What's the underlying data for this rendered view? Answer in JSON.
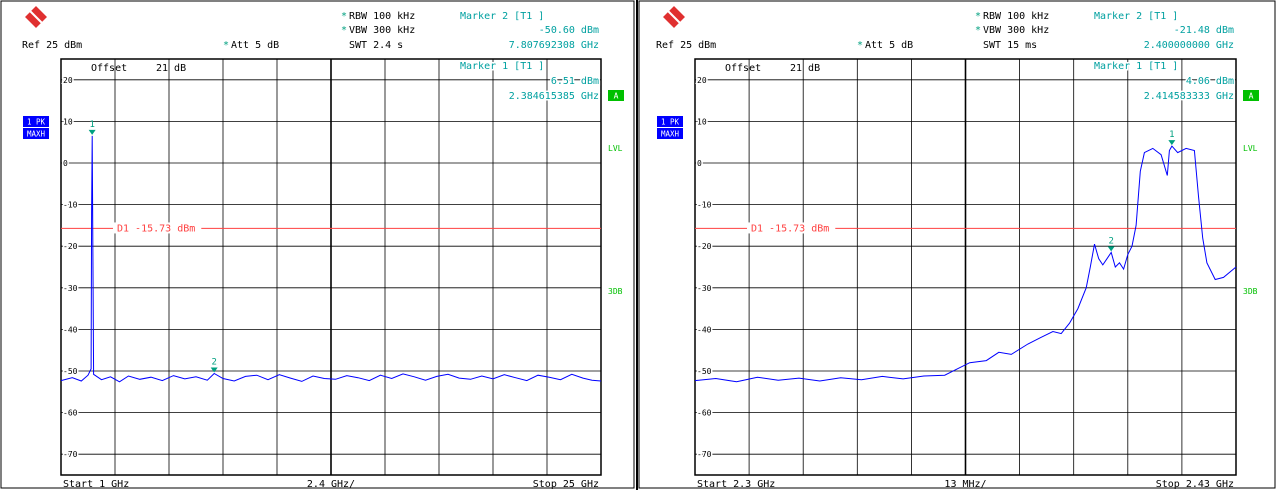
{
  "panels": [
    {
      "id": "left",
      "header": {
        "rbw": "RBW 100 kHz",
        "vbw": "VBW 300 kHz",
        "swt": "SWT 2.4 s",
        "ref": "Ref  25 dBm",
        "att": "Att  5 dB",
        "rbw_star": "*",
        "vbw_star": "*",
        "att_star": "*",
        "marker2_title": "Marker 2 [T1 ]",
        "marker2_level": "-50.60 dBm",
        "marker2_freq": "7.807692308 GHz",
        "marker1_title": "Marker 1 [T1 ]",
        "marker1_level": "6.51 dBm",
        "marker1_freq": "2.384615385 GHz"
      },
      "offset_label": "Offset",
      "offset_value": "21 dB",
      "side_labels": {
        "trace_box_top": "1 PK",
        "trace_box_bottom": "MAXH",
        "a_box": "A",
        "lvl": "LVL",
        "db3": "3DB"
      },
      "display_line_label": "D1 -15.73 dBm",
      "footer": {
        "start": "Start  1 GHz",
        "center": "2.4 GHz/",
        "stop": "Stop  25 GHz"
      },
      "chart_data": {
        "type": "line",
        "x_unit": "GHz",
        "xlim": [
          1,
          25
        ],
        "ylim": [
          -75,
          25
        ],
        "yticks": [
          20,
          10,
          0,
          -10,
          -20,
          -30,
          -40,
          -50,
          -60,
          -70
        ],
        "ytick_labels": [
          "20",
          "10",
          "0",
          "-10",
          "-20",
          "-30",
          "-40",
          "-50",
          "-60",
          "-70"
        ],
        "display_line": -15.73,
        "markers": [
          {
            "label": "1",
            "x": 2.384615385,
            "y": 6.51
          },
          {
            "label": "2",
            "x": 7.807692308,
            "y": -50.6
          }
        ],
        "series": [
          {
            "points": [
              [
                1.0,
                -52.3
              ],
              [
                1.5,
                -51.6
              ],
              [
                1.9,
                -52.4
              ],
              [
                2.2,
                -51.0
              ],
              [
                2.34,
                -49.5
              ],
              [
                2.36,
                -12.0
              ],
              [
                2.3846,
                6.51
              ],
              [
                2.41,
                -14.0
              ],
              [
                2.45,
                -50.8
              ],
              [
                2.8,
                -52.1
              ],
              [
                3.2,
                -51.4
              ],
              [
                3.6,
                -52.6
              ],
              [
                4.0,
                -51.2
              ],
              [
                4.5,
                -52.0
              ],
              [
                5.0,
                -51.5
              ],
              [
                5.5,
                -52.3
              ],
              [
                6.0,
                -51.1
              ],
              [
                6.5,
                -51.9
              ],
              [
                7.0,
                -51.4
              ],
              [
                7.5,
                -52.2
              ],
              [
                7.8077,
                -50.6
              ],
              [
                8.2,
                -51.8
              ],
              [
                8.7,
                -52.4
              ],
              [
                9.2,
                -51.3
              ],
              [
                9.7,
                -51.0
              ],
              [
                10.2,
                -52.1
              ],
              [
                10.7,
                -50.9
              ],
              [
                11.2,
                -51.7
              ],
              [
                11.7,
                -52.5
              ],
              [
                12.2,
                -51.2
              ],
              [
                12.7,
                -51.8
              ],
              [
                13.2,
                -52.0
              ],
              [
                13.7,
                -51.1
              ],
              [
                14.2,
                -51.6
              ],
              [
                14.7,
                -52.3
              ],
              [
                15.2,
                -51.0
              ],
              [
                15.7,
                -51.8
              ],
              [
                16.2,
                -50.7
              ],
              [
                16.7,
                -51.4
              ],
              [
                17.2,
                -52.2
              ],
              [
                17.7,
                -51.3
              ],
              [
                18.2,
                -50.8
              ],
              [
                18.7,
                -51.7
              ],
              [
                19.2,
                -52.0
              ],
              [
                19.7,
                -51.2
              ],
              [
                20.2,
                -51.9
              ],
              [
                20.7,
                -50.9
              ],
              [
                21.2,
                -51.6
              ],
              [
                21.7,
                -52.3
              ],
              [
                22.2,
                -51.0
              ],
              [
                22.7,
                -51.5
              ],
              [
                23.2,
                -52.1
              ],
              [
                23.7,
                -50.8
              ],
              [
                24.2,
                -51.7
              ],
              [
                24.6,
                -52.2
              ],
              [
                25.0,
                -52.4
              ]
            ]
          }
        ]
      }
    },
    {
      "id": "right",
      "header": {
        "rbw": "RBW 100 kHz",
        "vbw": "VBW 300 kHz",
        "swt": "SWT 15 ms",
        "ref": "Ref  25 dBm",
        "att": "Att  5 dB",
        "rbw_star": "*",
        "vbw_star": "*",
        "att_star": "*",
        "marker2_title": "Marker 2 [T1 ]",
        "marker2_level": "-21.48 dBm",
        "marker2_freq": "2.400000000 GHz",
        "marker1_title": "Marker 1 [T1 ]",
        "marker1_level": "4.06 dBm",
        "marker1_freq": "2.414583333 GHz"
      },
      "offset_label": "Offset",
      "offset_value": "21 dB",
      "side_labels": {
        "trace_box_top": "1 PK",
        "trace_box_bottom": "MAXH",
        "a_box": "A",
        "lvl": "LVL",
        "db3": "3DB"
      },
      "display_line_label": "D1 -15.73 dBm",
      "footer": {
        "start": "Start  2.3 GHz",
        "center": "13 MHz/",
        "stop": "Stop  2.43 GHz"
      },
      "chart_data": {
        "type": "line",
        "x_unit": "GHz",
        "xlim": [
          2.3,
          2.43
        ],
        "ylim": [
          -75,
          25
        ],
        "yticks": [
          20,
          10,
          0,
          -10,
          -20,
          -30,
          -40,
          -50,
          -60,
          -70
        ],
        "ytick_labels": [
          "20",
          "10",
          "0",
          "-10",
          "-20",
          "-30",
          "-40",
          "-50",
          "-60",
          "-70"
        ],
        "display_line": -15.73,
        "markers": [
          {
            "label": "1",
            "x": 2.414583333,
            "y": 4.06
          },
          {
            "label": "2",
            "x": 2.4,
            "y": -21.48
          }
        ],
        "series": [
          {
            "points": [
              [
                2.3,
                -52.3
              ],
              [
                2.305,
                -51.8
              ],
              [
                2.31,
                -52.6
              ],
              [
                2.315,
                -51.5
              ],
              [
                2.32,
                -52.2
              ],
              [
                2.325,
                -51.7
              ],
              [
                2.33,
                -52.4
              ],
              [
                2.335,
                -51.6
              ],
              [
                2.34,
                -52.1
              ],
              [
                2.345,
                -51.3
              ],
              [
                2.35,
                -51.9
              ],
              [
                2.355,
                -51.2
              ],
              [
                2.36,
                -51.0
              ],
              [
                2.363,
                -49.5
              ],
              [
                2.366,
                -48.0
              ],
              [
                2.37,
                -47.5
              ],
              [
                2.373,
                -45.5
              ],
              [
                2.376,
                -46.0
              ],
              [
                2.38,
                -43.5
              ],
              [
                2.383,
                -42.0
              ],
              [
                2.386,
                -40.5
              ],
              [
                2.388,
                -41.0
              ],
              [
                2.39,
                -38.5
              ],
              [
                2.392,
                -35.0
              ],
              [
                2.394,
                -30.0
              ],
              [
                2.395,
                -25.0
              ],
              [
                2.396,
                -19.5
              ],
              [
                2.397,
                -23.0
              ],
              [
                2.398,
                -24.5
              ],
              [
                2.399,
                -23.0
              ],
              [
                2.4,
                -21.48
              ],
              [
                2.401,
                -25.0
              ],
              [
                2.402,
                -24.0
              ],
              [
                2.403,
                -25.5
              ],
              [
                2.404,
                -22.0
              ],
              [
                2.405,
                -20.0
              ],
              [
                2.406,
                -15.0
              ],
              [
                2.407,
                -2.0
              ],
              [
                2.408,
                2.5
              ],
              [
                2.41,
                3.5
              ],
              [
                2.412,
                2.0
              ],
              [
                2.4135,
                -3.0
              ],
              [
                2.414,
                3.0
              ],
              [
                2.4146,
                4.06
              ],
              [
                2.416,
                2.5
              ],
              [
                2.418,
                3.5
              ],
              [
                2.42,
                3.0
              ],
              [
                2.421,
                -8.0
              ],
              [
                2.422,
                -18.0
              ],
              [
                2.423,
                -24.0
              ],
              [
                2.425,
                -28.0
              ],
              [
                2.427,
                -27.5
              ],
              [
                2.43,
                -25.0
              ]
            ]
          }
        ]
      }
    }
  ],
  "colors": {
    "trace": "#0000ff",
    "marker": "#00a080",
    "cyan_text": "#00a0a0",
    "display_line": "#ff4040",
    "grid": "#000000",
    "a_box": "#00c000",
    "trace_box": "#0000ff",
    "logo": "#e03030"
  }
}
